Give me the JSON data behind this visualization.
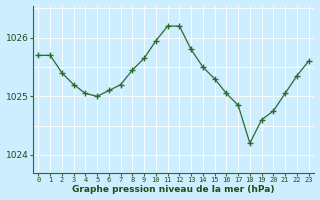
{
  "x": [
    0,
    1,
    2,
    3,
    4,
    5,
    6,
    7,
    8,
    9,
    10,
    11,
    12,
    13,
    14,
    15,
    16,
    17,
    18,
    19,
    20,
    21,
    22,
    23
  ],
  "y": [
    1025.7,
    1025.7,
    1025.4,
    1025.2,
    1025.05,
    1025.0,
    1025.1,
    1025.2,
    1025.45,
    1025.65,
    1025.95,
    1026.2,
    1026.2,
    1025.8,
    1025.5,
    1025.3,
    1025.05,
    1024.85,
    1024.2,
    1024.6,
    1024.75,
    1025.05,
    1025.35,
    1025.6
  ],
  "line_color": "#2d6a2d",
  "marker_color": "#2d6a2d",
  "bg_color": "#cceeff",
  "grid_color_major": "#ffffff",
  "grid_color_minor": "#aadddd",
  "text_color": "#1a4f1a",
  "xlabel": "Graphe pression niveau de la mer (hPa)",
  "ylim": [
    1023.7,
    1026.55
  ],
  "yticks": [
    1024,
    1025,
    1026
  ],
  "spine_color": "#2d6a2d"
}
